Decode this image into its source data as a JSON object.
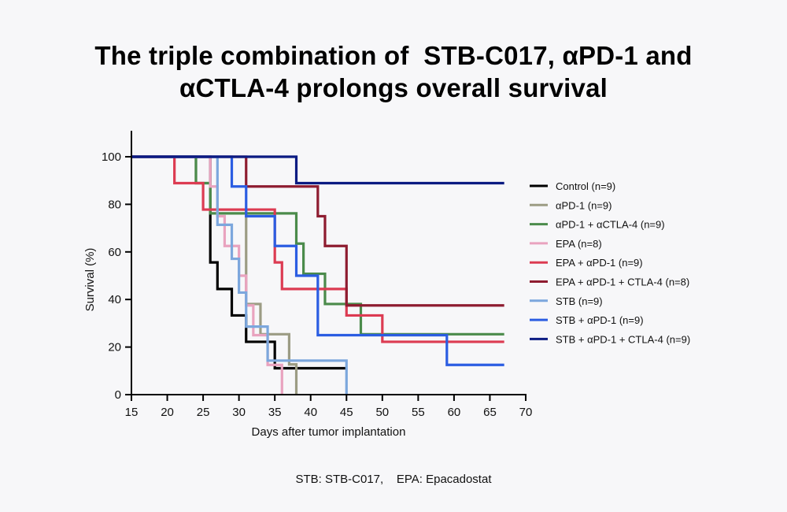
{
  "title_lines": [
    "The triple combination of  STB-C017, αPD-1 and",
    "αCTLA-4 prolongs overall survival"
  ],
  "footnote": "STB: STB-C017,    EPA: Epacadostat",
  "chart_data": {
    "type": "line",
    "subtype": "kaplan-meier-step",
    "title": "The triple combination of STB-C017, αPD-1 and αCTLA-4 prolongs overall survival",
    "xlabel": "Days after tumor implantation",
    "ylabel": "Survival (%)",
    "xlim": [
      15,
      70
    ],
    "ylim": [
      0,
      100
    ],
    "xticks": [
      15,
      20,
      25,
      30,
      35,
      40,
      45,
      50,
      55,
      60,
      65,
      70
    ],
    "yticks": [
      0,
      20,
      40,
      60,
      80,
      100
    ],
    "grid": false,
    "legend_position": "right",
    "series": [
      {
        "name": "Control (n=9)",
        "color": "#000000",
        "x": [
          15,
          26,
          27,
          29,
          31,
          35,
          45
        ],
        "y": [
          100,
          55.6,
          44.4,
          33.3,
          22.2,
          11.1,
          11.1
        ]
      },
      {
        "name": "αPD-1 (n=9)",
        "color": "#9c9c84",
        "x": [
          15,
          24,
          26,
          31,
          33,
          37,
          38
        ],
        "y": [
          100,
          88.9,
          77.8,
          38.1,
          25.4,
          12.7,
          0
        ]
      },
      {
        "name": "αPD-1 + αCTLA-4 (n=9)",
        "color": "#4b8b4b",
        "x": [
          15,
          24,
          26,
          38,
          39,
          42,
          47,
          67
        ],
        "y": [
          100,
          88.9,
          76.2,
          63.5,
          50.8,
          38.1,
          25.4,
          25.4
        ]
      },
      {
        "name": "EPA (n=8)",
        "color": "#e9a3bf",
        "x": [
          15,
          26,
          27,
          28,
          30,
          31,
          32,
          34,
          36
        ],
        "y": [
          100,
          87.5,
          75,
          62.5,
          50,
          37.5,
          25,
          12.5,
          0
        ]
      },
      {
        "name": "EPA + αPD-1 (n=9)",
        "color": "#dc3b52",
        "x": [
          15,
          21,
          25,
          35,
          36,
          45,
          50,
          67
        ],
        "y": [
          100,
          88.9,
          77.8,
          55.6,
          44.4,
          33.3,
          22.2,
          22.2
        ]
      },
      {
        "name": "EPA + αPD-1 + CTLA-4 (n=8)",
        "color": "#8e1c30",
        "x": [
          15,
          31,
          41,
          42,
          45,
          67
        ],
        "y": [
          100,
          87.5,
          75,
          62.5,
          37.5,
          37.5
        ]
      },
      {
        "name": "STB (n=9)",
        "color": "#7ca7dd",
        "x": [
          15,
          27,
          29,
          30,
          31,
          34,
          45
        ],
        "y": [
          100,
          71.4,
          57.1,
          42.9,
          28.6,
          14.3,
          0
        ]
      },
      {
        "name": "STB + αPD-1 (n=9)",
        "color": "#2b5de2",
        "x": [
          15,
          29,
          31,
          35,
          38,
          41,
          59,
          67
        ],
        "y": [
          100,
          87.5,
          75,
          62.5,
          50,
          25,
          12.5,
          12.5
        ]
      },
      {
        "name": "STB + αPD-1 + CTLA-4 (n=9)",
        "color": "#0b1b82",
        "x": [
          15,
          38,
          67
        ],
        "y": [
          100,
          88.9,
          88.9
        ]
      }
    ]
  }
}
